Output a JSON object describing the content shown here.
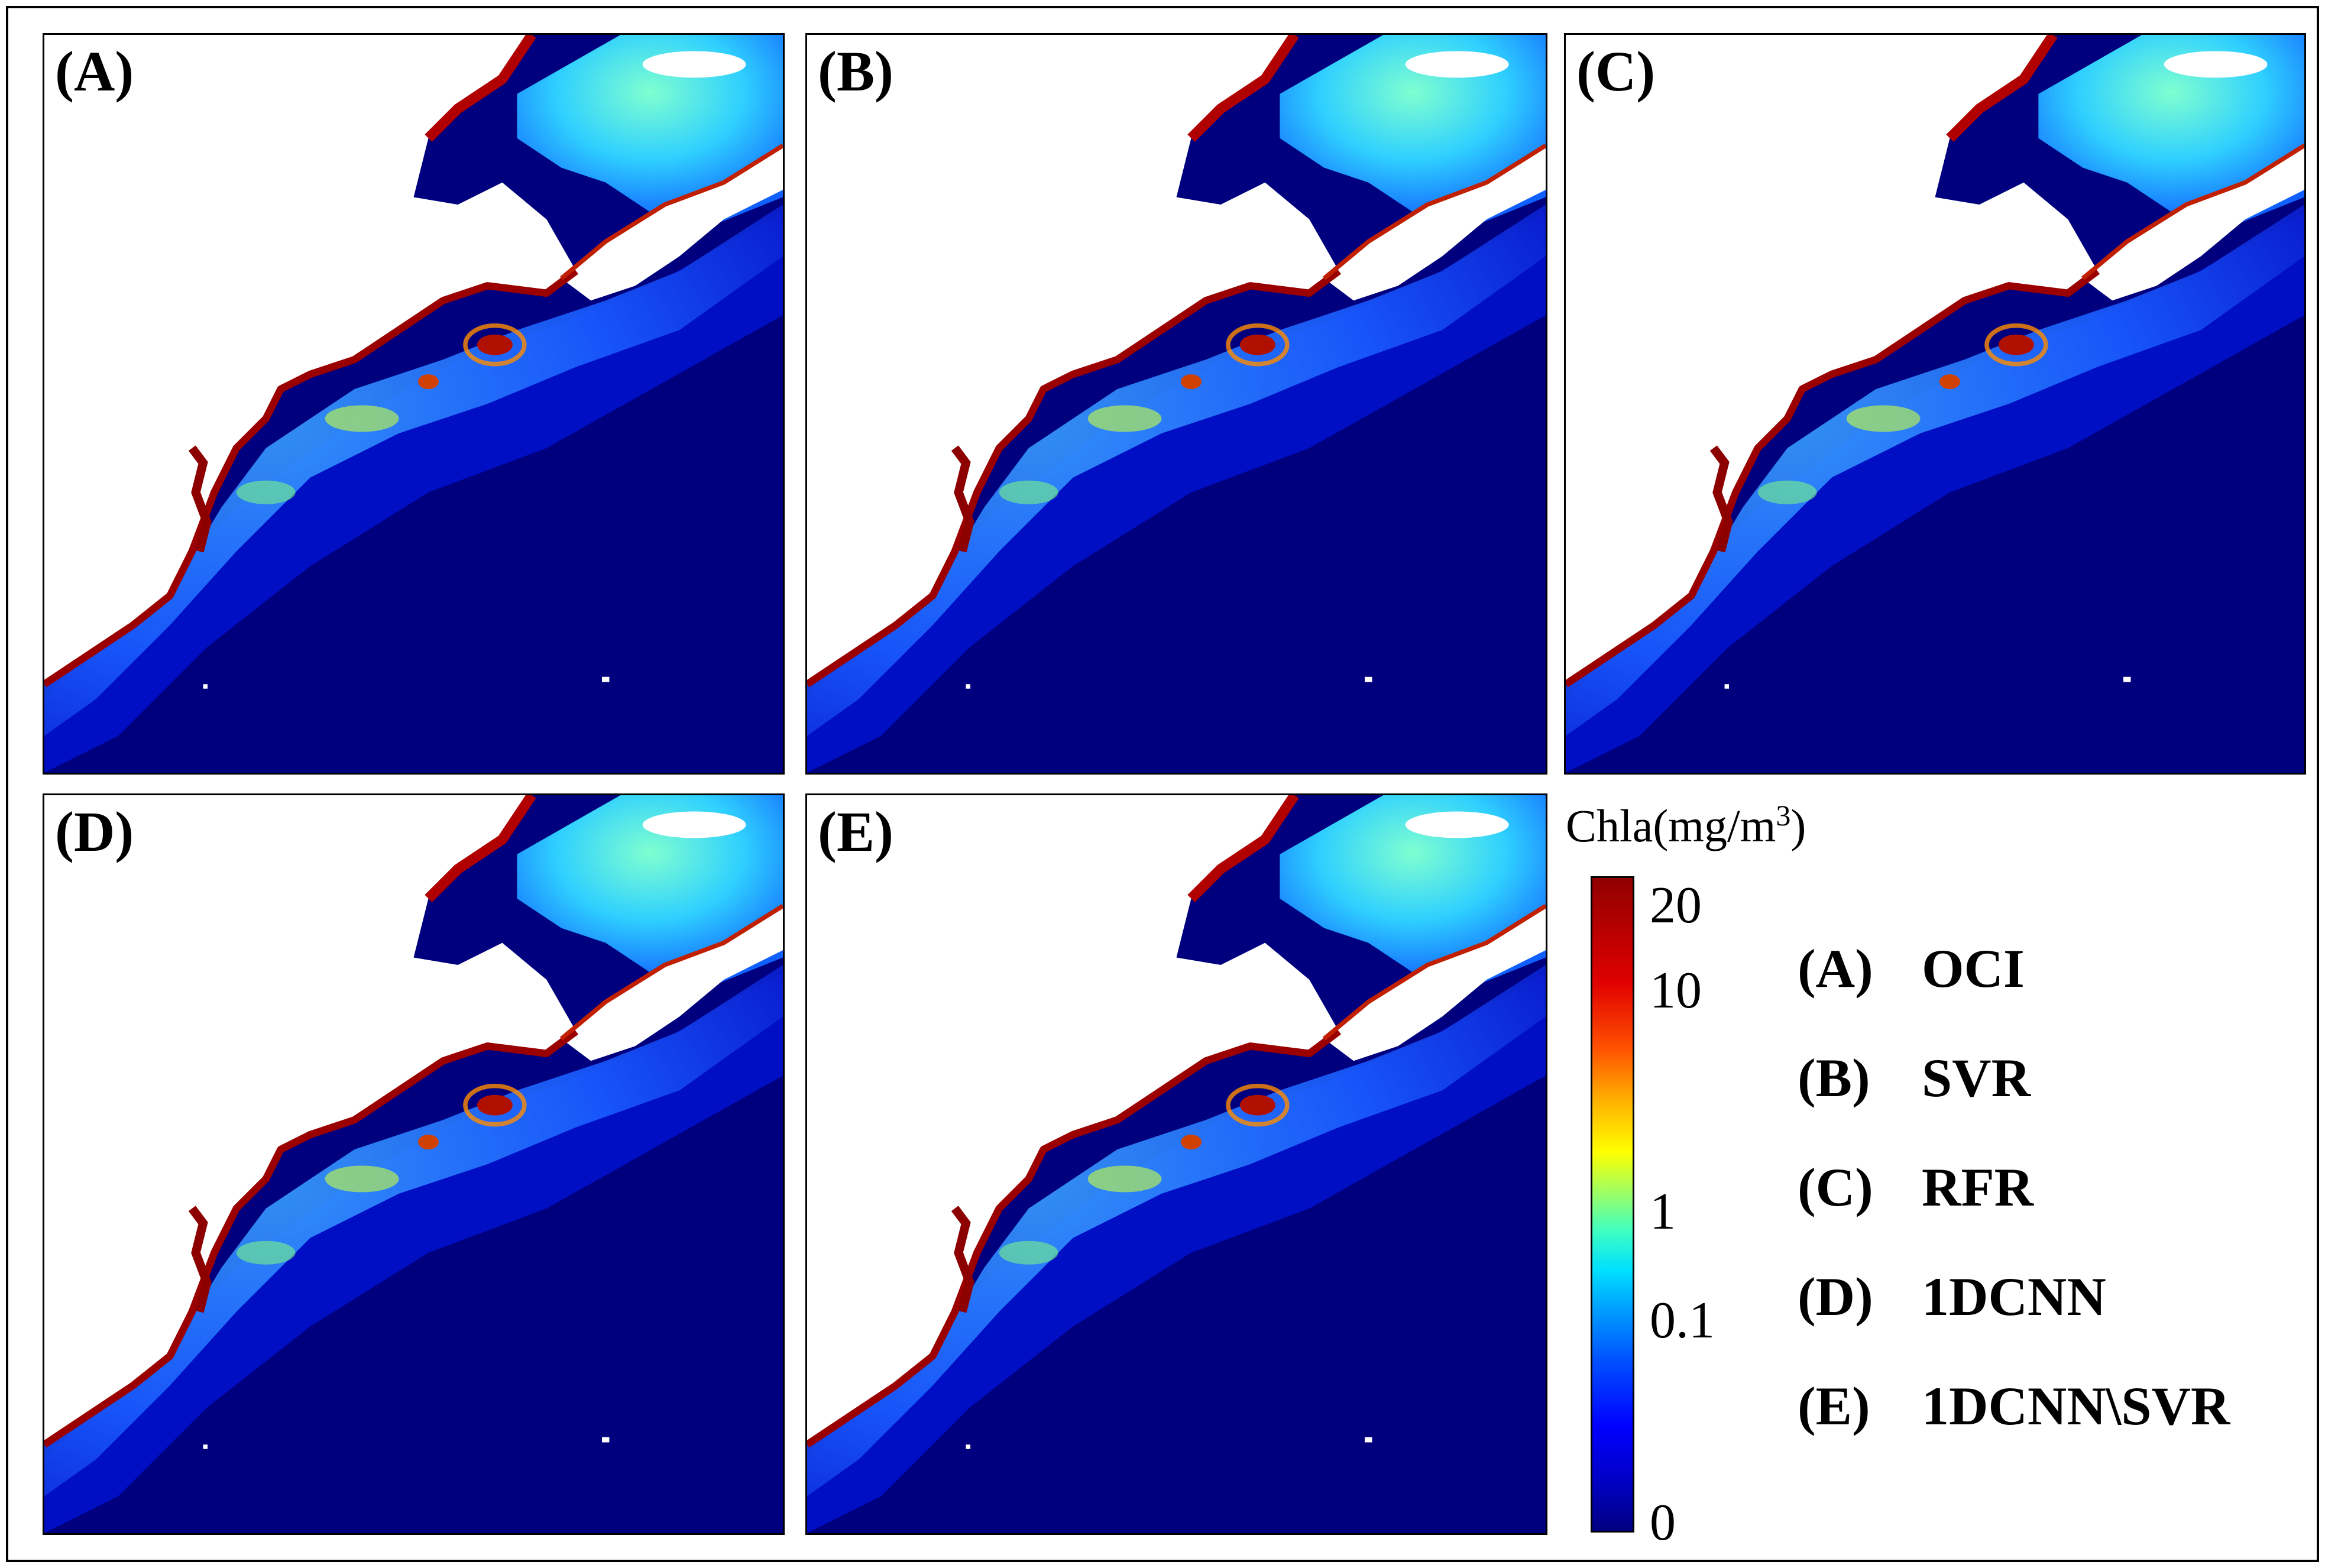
{
  "panels": [
    {
      "id": "A",
      "label": "(A)"
    },
    {
      "id": "B",
      "label": "(B)"
    },
    {
      "id": "C",
      "label": "(C)"
    },
    {
      "id": "D",
      "label": "(D)"
    },
    {
      "id": "E",
      "label": "(E)"
    }
  ],
  "colorbar": {
    "title": "Chla(mg/m",
    "title_sup": "3",
    "title_close": ")",
    "ticks": [
      "20",
      "10",
      "1",
      "0.1",
      "0"
    ],
    "colormap": "jet",
    "colors": {
      "low": "#000080",
      "mid": "#00e0ff",
      "high": "#900000"
    }
  },
  "legend": [
    {
      "key": "(A)",
      "name": "OCI"
    },
    {
      "key": "(B)",
      "name": "SVR"
    },
    {
      "key": "(C)",
      "name": "RFR"
    },
    {
      "key": "(D)",
      "name": "1DCNN"
    },
    {
      "key": "(E)",
      "name": "1DCNN\\SVR"
    }
  ],
  "land_color": "#ffffff",
  "ocean_color": "#00007e"
}
